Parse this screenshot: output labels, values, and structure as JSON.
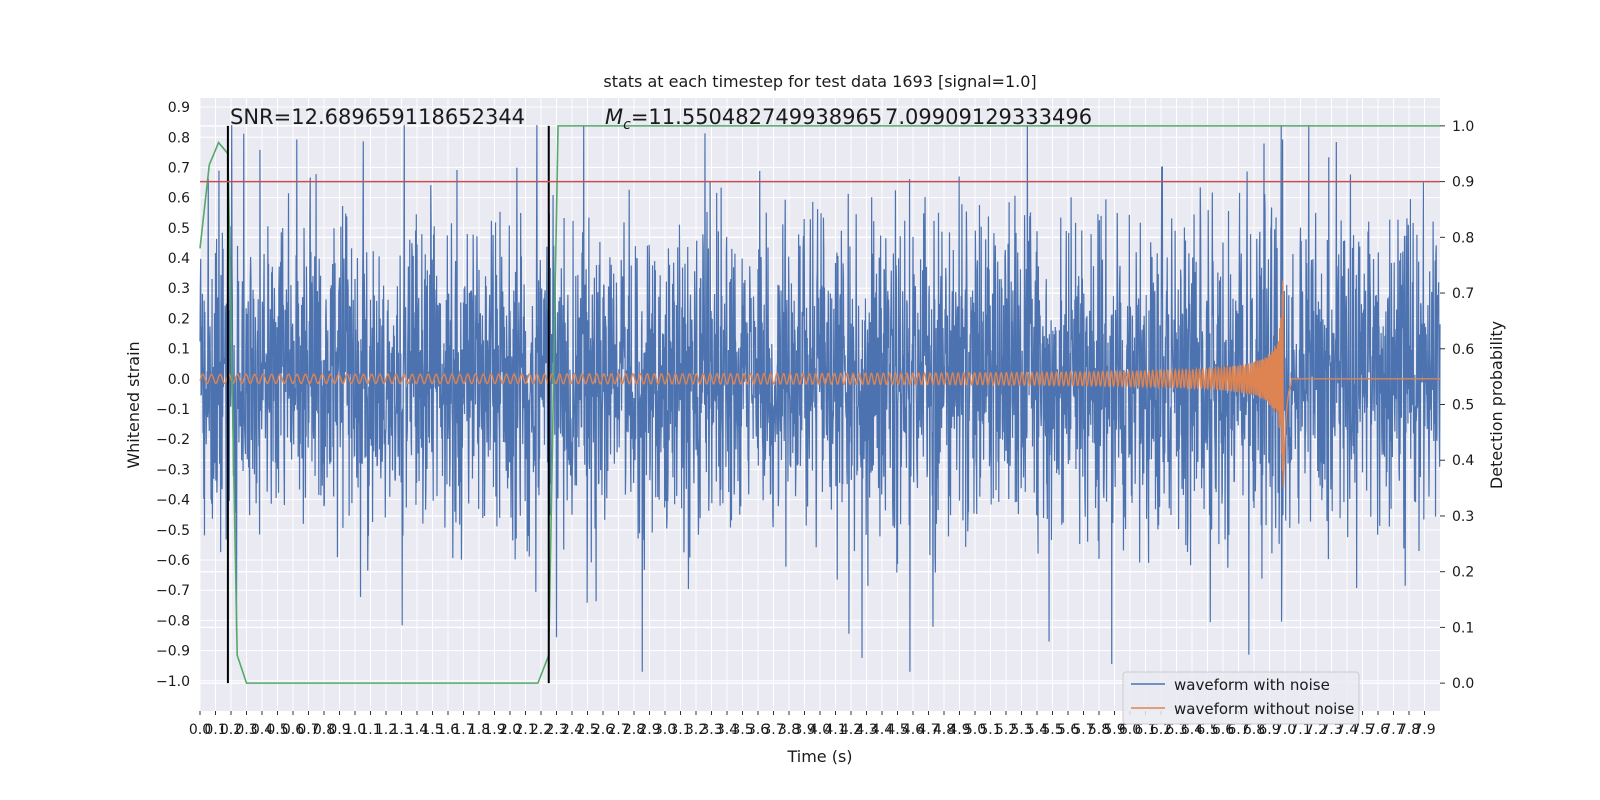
{
  "chart_data": {
    "type": "line",
    "title": "stats at each timestep for test data 1693 [signal=1.0]",
    "xlabel": "Time (s)",
    "ylabel": "Whitened strain",
    "y2label": "Detection probability",
    "xlim": [
      0.0,
      8.0
    ],
    "ylim": [
      -1.1,
      0.93
    ],
    "y2lim": [
      -0.05,
      1.05
    ],
    "x_ticks": [
      0.0,
      0.1,
      0.2,
      0.3,
      0.4,
      0.5,
      0.6,
      0.7,
      0.8,
      0.9,
      1.0,
      1.1,
      1.2,
      1.3,
      1.4,
      1.5,
      1.6,
      1.7,
      1.8,
      1.9,
      2.0,
      2.1,
      2.2,
      2.3,
      2.4,
      2.5,
      2.6,
      2.7,
      2.8,
      2.9,
      3.0,
      3.1,
      3.2,
      3.3,
      3.4,
      3.5,
      3.6,
      3.7,
      3.8,
      3.9,
      4.0,
      4.1,
      4.2,
      4.3,
      4.4,
      4.5,
      4.6,
      4.7,
      4.8,
      4.9,
      5.0,
      5.1,
      5.2,
      5.3,
      5.4,
      5.5,
      5.6,
      5.7,
      5.8,
      5.9,
      6.0,
      6.1,
      6.2,
      6.3,
      6.4,
      6.5,
      6.6,
      6.7,
      6.8,
      6.9,
      7.0,
      7.1,
      7.2,
      7.3,
      7.4,
      7.5,
      7.6,
      7.7,
      7.8,
      7.9
    ],
    "y_ticks": [
      0.9,
      0.8,
      0.7,
      0.6,
      0.5,
      0.4,
      0.3,
      0.2,
      0.1,
      0.0,
      -0.1,
      -0.2,
      -0.3,
      -0.4,
      -0.5,
      -0.6,
      -0.7,
      -0.8,
      -0.9,
      -1.0
    ],
    "y_tick_labels": [
      "0.9",
      "0.8",
      "0.7",
      "0.6",
      "0.5",
      "0.4",
      "0.3",
      "0.2",
      "0.1",
      "0.0",
      "−0.1",
      "−0.2",
      "−0.3",
      "−0.4",
      "−0.5",
      "−0.6",
      "−0.7",
      "−0.8",
      "−0.9",
      "−1.0"
    ],
    "y2_ticks": [
      1.0,
      0.9,
      0.8,
      0.7,
      0.6,
      0.5,
      0.4,
      0.3,
      0.2,
      0.1,
      0.0
    ],
    "y2_tick_labels": [
      "1.0",
      "0.9",
      "0.8",
      "0.7",
      "0.6",
      "0.5",
      "0.4",
      "0.3",
      "0.2",
      "0.1",
      "0.0"
    ],
    "annotations": {
      "snr": "SNR=12.689659118652344",
      "mc_prefix": "M",
      "mc_sub": "c",
      "mc_value": "=11.550482749938965",
      "overlap": "7.09909129333496"
    },
    "threshold": {
      "value": 0.9,
      "color": "#c44e52"
    },
    "detection_markers_x": [
      0.18,
      2.25
    ],
    "series": [
      {
        "name": "waveform with noise",
        "color": "#4c72b0",
        "noise_amplitude": 0.3
      },
      {
        "name": "waveform without noise",
        "color": "#dd8452",
        "chirp_start_amp": 0.015,
        "chirp_peak_amp": 0.45,
        "merger_time": 6.99
      },
      {
        "name": "detection probability",
        "color": "#55a868",
        "axis": "right",
        "x": [
          0.0,
          0.06,
          0.12,
          0.18,
          0.24,
          0.3,
          2.18,
          2.25,
          2.31,
          8.0
        ],
        "values": [
          0.78,
          0.93,
          0.97,
          0.95,
          0.05,
          0.0,
          0.0,
          0.05,
          1.0,
          1.0
        ]
      }
    ],
    "legend": {
      "placement": "bottom-right",
      "entries": [
        "waveform with noise",
        "waveform without noise"
      ]
    },
    "grid": true,
    "colors": {
      "axes_bg": "#eaeaf2",
      "grid": "#ffffff",
      "marker": "#000000"
    }
  }
}
